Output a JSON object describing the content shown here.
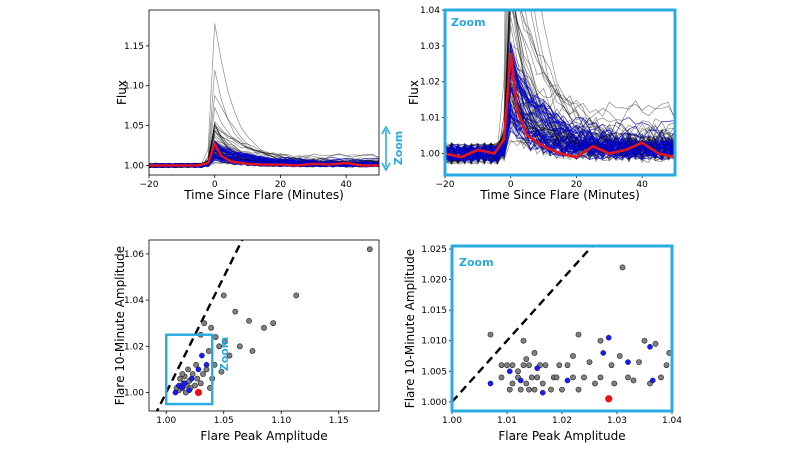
{
  "colors": {
    "zoom": "#29abe2",
    "gray_lines": "#000000",
    "blue_series": "#0000cc",
    "red_series": "#e8141b",
    "gray_points": "#808080",
    "blue_points": "#1a1aff",
    "red_point": "#ee1111"
  },
  "zoom_text": "Zoom",
  "chart_data": [
    {
      "type": "line",
      "xlabel": "Time Since Flare (Minutes)",
      "ylabel": "Flux",
      "xlim": [
        -20,
        50
      ],
      "ylim": [
        0.988,
        1.195
      ],
      "xticks": [
        "−20",
        "0",
        "20",
        "40"
      ],
      "yticks": [
        "1.00",
        "1.05",
        "1.10",
        "1.15"
      ],
      "series": [
        {
          "group": "black",
          "note": "individual flares (many overlapping)",
          "peak_values": [
            1.18,
            1.12,
            1.09,
            1.07,
            1.05
          ]
        },
        {
          "group": "blue",
          "note": "individual flares (many overlapping)"
        },
        {
          "group": "red",
          "x": [
            -20,
            -15,
            -10,
            -5,
            -2,
            0,
            2,
            5,
            10,
            15,
            20,
            25,
            30,
            35,
            40,
            45,
            50
          ],
          "values": [
            1.0,
            1.0,
            1.0,
            1.0,
            1.003,
            1.027,
            1.012,
            1.005,
            1.002,
            1.001,
            1.001,
            1.0,
            1.002,
            1.001,
            1.003,
            1.0,
            1.0
          ]
        }
      ]
    },
    {
      "type": "line",
      "xlabel": "Time Since Flare (Minutes)",
      "ylabel": "Flux",
      "xlim": [
        -20,
        50
      ],
      "ylim": [
        0.994,
        1.04
      ],
      "xticks": [
        "−20",
        "0",
        "20",
        "40"
      ],
      "yticks": [
        "1.00",
        "1.01",
        "1.02",
        "1.03",
        "1.04"
      ],
      "series": [
        {
          "group": "red",
          "x": [
            -20,
            -15,
            -10,
            -5,
            -2,
            0,
            2,
            5,
            10,
            15,
            20,
            25,
            30,
            35,
            40,
            45,
            50
          ],
          "values": [
            1.0,
            0.999,
            1.001,
            1.0,
            1.004,
            1.028,
            1.012,
            1.005,
            1.002,
            1.0,
            0.999,
            1.002,
            1.0,
            1.001,
            1.003,
            1.0,
            0.999
          ]
        }
      ]
    },
    {
      "type": "scatter",
      "xlabel": "Flare Peak Amplitude",
      "ylabel": "Flare 10-Minute Amplitude",
      "xlim": [
        0.985,
        1.185
      ],
      "ylim": [
        0.992,
        1.066
      ],
      "xticks": [
        "1.00",
        "1.05",
        "1.10",
        "1.15"
      ],
      "yticks": [
        "1.00",
        "1.02",
        "1.04",
        "1.06"
      ],
      "zoom_box": {
        "x": [
          1.0,
          1.04
        ],
        "y": [
          0.995,
          1.025
        ]
      },
      "gray_points": [
        [
          1.177,
          1.062
        ],
        [
          1.113,
          1.042
        ],
        [
          1.093,
          1.03
        ],
        [
          1.085,
          1.028
        ],
        [
          1.072,
          1.031
        ],
        [
          1.06,
          1.035
        ],
        [
          1.05,
          1.042
        ],
        [
          1.046,
          1.02
        ],
        [
          1.055,
          1.016
        ],
        [
          1.075,
          1.018
        ],
        [
          1.043,
          1.024
        ],
        [
          1.039,
          1.028
        ],
        [
          1.033,
          1.03
        ],
        [
          1.03,
          1.025
        ],
        [
          1.037,
          1.018
        ],
        [
          1.042,
          1.012
        ],
        [
          1.048,
          1.009
        ],
        [
          1.051,
          1.022
        ],
        [
          1.064,
          1.02
        ],
        [
          1.027,
          1.006
        ],
        [
          1.023,
          1.008
        ],
        [
          1.02,
          1.005
        ],
        [
          1.018,
          1.003
        ],
        [
          1.015,
          1.004
        ],
        [
          1.013,
          1.002
        ],
        [
          1.012,
          1.006
        ],
        [
          1.011,
          1.001
        ],
        [
          1.016,
          1.007
        ],
        [
          1.025,
          1.003
        ],
        [
          1.03,
          1.004
        ],
        [
          1.035,
          1.01
        ],
        [
          1.038,
          1.002
        ],
        [
          1.009,
          1.002
        ],
        [
          1.014,
          1.008
        ],
        [
          1.019,
          1.01
        ],
        [
          1.021,
          1.002
        ],
        [
          1.026,
          1.012
        ],
        [
          1.032,
          1.008
        ],
        [
          1.04,
          1.006
        ],
        [
          1.017,
          1.0
        ]
      ],
      "blue_points": [
        [
          1.008,
          1.0
        ],
        [
          1.011,
          1.003
        ],
        [
          1.014,
          1.002
        ],
        [
          1.016,
          1.004
        ],
        [
          1.02,
          1.001
        ],
        [
          1.022,
          1.006
        ],
        [
          1.028,
          1.01
        ],
        [
          1.035,
          1.012
        ],
        [
          1.031,
          1.016
        ]
      ],
      "red_points": [
        [
          1.028,
          1.0
        ]
      ]
    },
    {
      "type": "scatter",
      "xlabel": "Flare Peak Amplitude",
      "ylabel": "Flare 10-Minute Amplitude",
      "xlim": [
        1.0,
        1.04
      ],
      "ylim": [
        0.9985,
        1.0255
      ],
      "xticks": [
        "1.00",
        "1.01",
        "1.02",
        "1.03",
        "1.04"
      ],
      "yticks": [
        "1.000",
        "1.005",
        "1.010",
        "1.015",
        "1.020",
        "1.025"
      ],
      "gray_points": [
        [
          1.007,
          1.011
        ],
        [
          1.009,
          1.006
        ],
        [
          1.009,
          1.004
        ],
        [
          1.01,
          1.006
        ],
        [
          1.0105,
          1.002
        ],
        [
          1.011,
          1.003
        ],
        [
          1.011,
          1.006
        ],
        [
          1.012,
          1.004
        ],
        [
          1.0125,
          1.002
        ],
        [
          1.013,
          1.006
        ],
        [
          1.013,
          1.01
        ],
        [
          1.0135,
          1.003
        ],
        [
          1.014,
          1.006
        ],
        [
          1.014,
          1.002
        ],
        [
          1.0145,
          1.004
        ],
        [
          1.015,
          1.002
        ],
        [
          1.015,
          1.008
        ],
        [
          1.0155,
          1.004
        ],
        [
          1.016,
          1.006
        ],
        [
          1.0165,
          1.003
        ],
        [
          1.017,
          1.006
        ],
        [
          1.018,
          1.002
        ],
        [
          1.0185,
          1.004
        ],
        [
          1.019,
          1.004
        ],
        [
          1.0195,
          1.006
        ],
        [
          1.02,
          1.002
        ],
        [
          1.021,
          1.006
        ],
        [
          1.022,
          1.004
        ],
        [
          1.022,
          1.0075
        ],
        [
          1.023,
          1.002
        ],
        [
          1.023,
          1.011
        ],
        [
          1.024,
          1.004
        ],
        [
          1.025,
          1.0065
        ],
        [
          1.026,
          1.003
        ],
        [
          1.027,
          1.01
        ],
        [
          1.027,
          1.004
        ],
        [
          1.029,
          1.006
        ],
        [
          1.0295,
          1.003
        ],
        [
          1.0305,
          1.0075
        ],
        [
          1.031,
          1.022
        ],
        [
          1.032,
          1.004
        ],
        [
          1.033,
          1.0035
        ],
        [
          1.034,
          1.0065
        ],
        [
          1.035,
          1.01
        ],
        [
          1.036,
          1.003
        ],
        [
          1.037,
          1.0095
        ],
        [
          1.038,
          1.004
        ],
        [
          1.039,
          1.006
        ],
        [
          1.0395,
          1.008
        ],
        [
          1.0135,
          1.007
        ],
        [
          1.012,
          1.005
        ]
      ],
      "blue_points": [
        [
          1.007,
          1.003
        ],
        [
          1.0105,
          1.005
        ],
        [
          1.0125,
          1.0035
        ],
        [
          1.0155,
          1.0055
        ],
        [
          1.0165,
          1.0015
        ],
        [
          1.021,
          1.0035
        ],
        [
          1.0275,
          1.008
        ],
        [
          1.0285,
          1.0105
        ],
        [
          1.032,
          1.0065
        ],
        [
          1.036,
          1.009
        ],
        [
          1.0365,
          1.0035
        ]
      ],
      "red_points": [
        [
          1.0285,
          1.0005
        ]
      ]
    }
  ]
}
